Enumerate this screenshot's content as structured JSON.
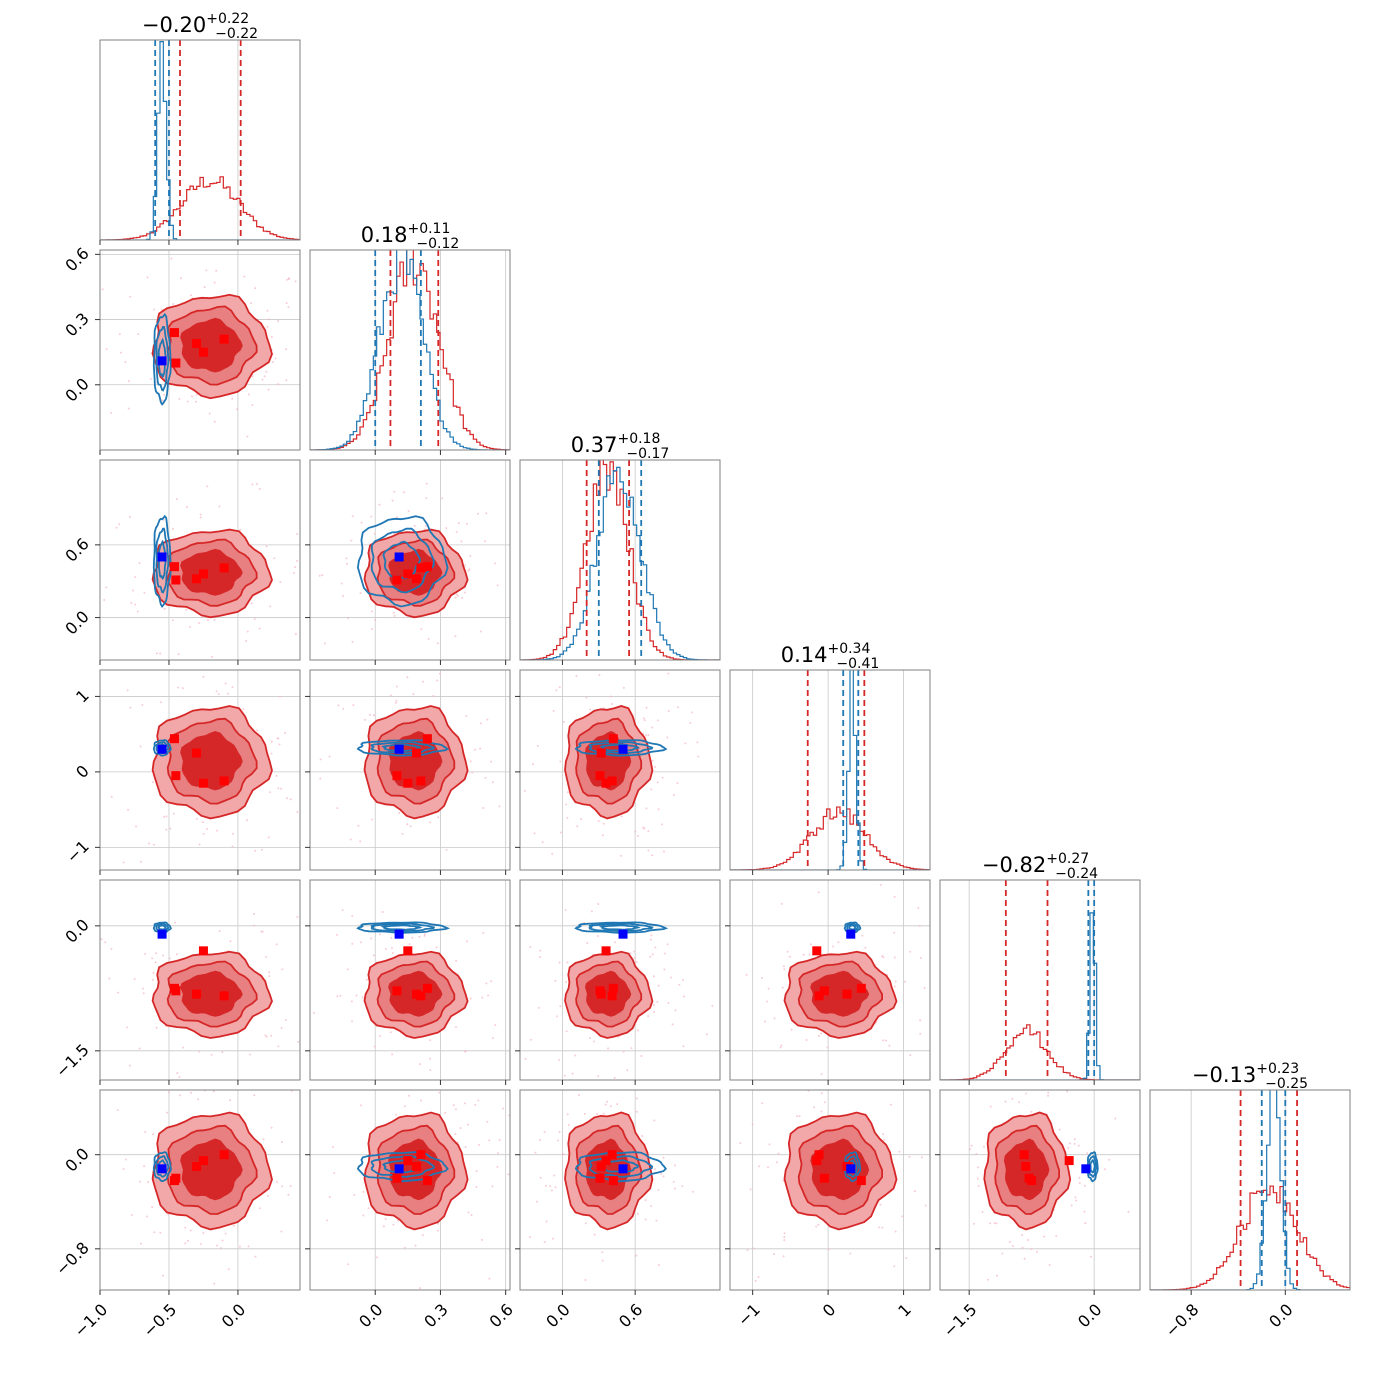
{
  "colors": {
    "red": "#d62728",
    "red_fill_outer": "#f2a8a8",
    "red_fill_mid": "#e87f80",
    "red_fill_inner": "#d62728",
    "blue": "#1f77b4",
    "truth_red": "#ff0000",
    "truth_blue": "#0000ff"
  },
  "chart_data": {
    "type": "corner",
    "n_params": 6,
    "titles": [
      {
        "median": "−0.20",
        "plus": "+0.22",
        "minus": "−0.22"
      },
      {
        "median": "0.18",
        "plus": "+0.11",
        "minus": "−0.12"
      },
      {
        "median": "0.37",
        "plus": "+0.18",
        "minus": "−0.17"
      },
      {
        "median": "0.14",
        "plus": "+0.34",
        "minus": "−0.41"
      },
      {
        "median": "−0.82",
        "plus": "+0.27",
        "minus": "−0.24"
      },
      {
        "median": "−0.13",
        "plus": "+0.23",
        "minus": "−0.25"
      }
    ],
    "params": [
      {
        "range": [
          -1.0,
          0.45
        ],
        "ticks": [
          -1.0,
          -0.5,
          0.0
        ],
        "tick_labels": [
          "−1.0",
          "−0.5",
          "0.0"
        ]
      },
      {
        "range": [
          -0.3,
          0.62
        ],
        "ticks": [
          0.0,
          0.3,
          0.6
        ],
        "tick_labels": [
          "0.0",
          "0.3",
          "0.6"
        ]
      },
      {
        "range": [
          -0.35,
          1.3
        ],
        "ticks": [
          0.0,
          0.6
        ],
        "tick_labels": [
          "0.0",
          "0.6"
        ]
      },
      {
        "range": [
          -1.3,
          1.35
        ],
        "ticks": [
          -1,
          0,
          1
        ],
        "tick_labels": [
          "−1",
          "0",
          "1"
        ]
      },
      {
        "range": [
          -1.85,
          0.55
        ],
        "ticks": [
          -1.5,
          0.0
        ],
        "tick_labels": [
          "−1.5",
          "0.0"
        ]
      },
      {
        "range": [
          -1.15,
          0.55
        ],
        "ticks": [
          -0.8,
          0.0
        ],
        "tick_labels": [
          "−0.8",
          "0.0"
        ]
      }
    ],
    "red_posterior": {
      "mean": [
        -0.2,
        0.18,
        0.37,
        0.14,
        -0.82,
        -0.13
      ],
      "std": [
        0.21,
        0.115,
        0.175,
        0.36,
        0.25,
        0.24
      ],
      "quantiles": [
        [
          -0.42,
          0.02
        ],
        [
          0.07,
          0.29
        ],
        [
          0.2,
          0.55
        ],
        [
          -0.27,
          0.48
        ],
        [
          -1.06,
          -0.56
        ],
        [
          -0.38,
          0.1
        ]
      ]
    },
    "blue_posterior": {
      "mean": [
        -0.55,
        0.12,
        0.47,
        0.32,
        -0.02,
        -0.1
      ],
      "std": [
        0.03,
        0.1,
        0.18,
        0.05,
        0.03,
        0.06
      ],
      "quantiles": [
        [
          -0.6,
          -0.5
        ],
        [
          0.0,
          0.21
        ],
        [
          0.3,
          0.65
        ],
        [
          0.2,
          0.4
        ],
        [
          -0.07,
          0.0
        ],
        [
          -0.2,
          0.0
        ]
      ]
    },
    "truth_blue": [
      -0.55,
      0.11,
      0.5,
      0.3,
      -0.1,
      -0.12
    ],
    "truth_red_points": [
      [
        -0.46,
        0.24,
        0.42,
        0.44,
        -0.75,
        -0.22
      ],
      [
        -0.3,
        0.19,
        0.32,
        0.25,
        -0.82,
        -0.1
      ],
      [
        -0.1,
        0.21,
        0.41,
        -0.12,
        -0.84,
        0.0
      ],
      [
        -0.45,
        0.1,
        0.31,
        -0.05,
        -0.78,
        -0.2
      ],
      [
        -0.25,
        0.15,
        0.36,
        -0.15,
        -0.3,
        -0.05
      ]
    ]
  }
}
